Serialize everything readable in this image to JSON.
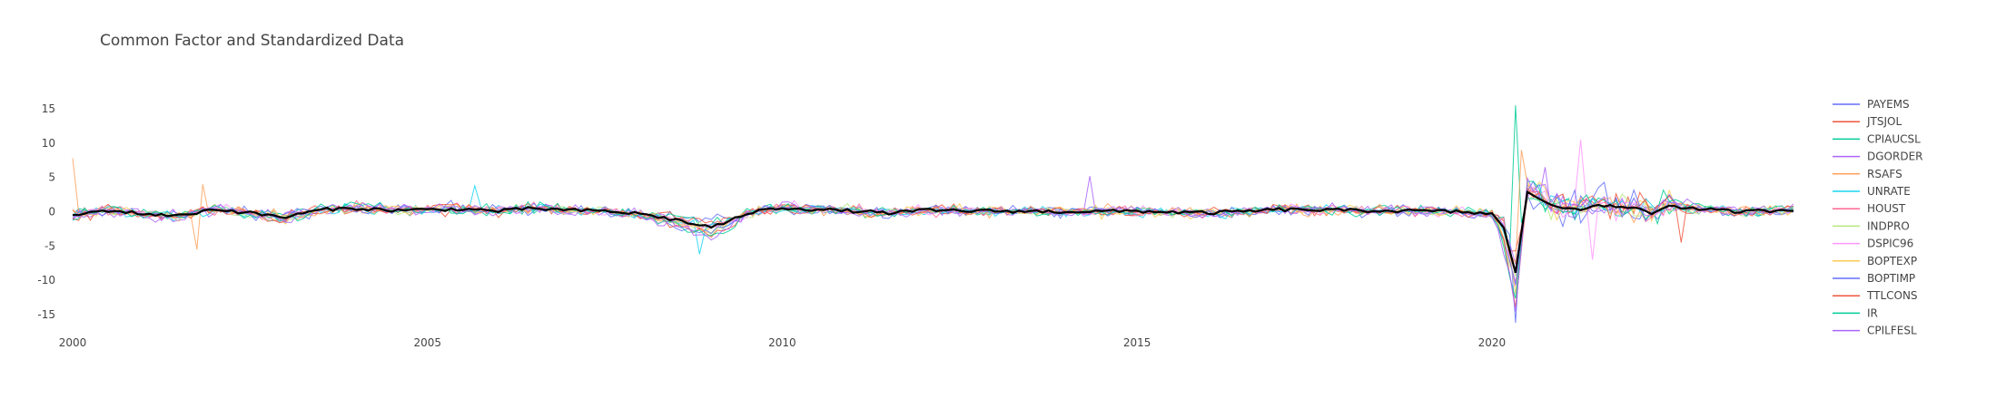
{
  "chart_data": {
    "type": "line",
    "title": "Common Factor and Standardized Data",
    "xlabel": "",
    "ylabel": "",
    "xlim": [
      2000,
      2024.25
    ],
    "ylim": [
      -17,
      17
    ],
    "x_ticks": [
      2000,
      2005,
      2010,
      2015,
      2020
    ],
    "y_ticks": [
      15,
      10,
      5,
      0,
      -5,
      -10,
      -15
    ],
    "grid": false,
    "legend_position": "right",
    "legend": [
      "PAYEMS",
      "JTSJOL",
      "CPIAUCSL",
      "DGORDER",
      "RSAFS",
      "UNRATE",
      "HOUST",
      "INDPRO",
      "DSPIC96",
      "BOPTEXP",
      "BOPTIMP",
      "TTLCONS",
      "IR",
      "CPILFESL"
    ],
    "series": [
      {
        "name": "PAYEMS",
        "color": "#636efa"
      },
      {
        "name": "JTSJOL",
        "color": "#ef553b"
      },
      {
        "name": "CPIAUCSL",
        "color": "#00cc96"
      },
      {
        "name": "DGORDER",
        "color": "#ab63fa"
      },
      {
        "name": "RSAFS",
        "color": "#ffa15a"
      },
      {
        "name": "UNRATE",
        "color": "#19d3f3"
      },
      {
        "name": "HOUST",
        "color": "#ff6692"
      },
      {
        "name": "INDPRO",
        "color": "#b6e880"
      },
      {
        "name": "DSPIC96",
        "color": "#ff97ff"
      },
      {
        "name": "BOPTEXP",
        "color": "#fecb52"
      },
      {
        "name": "BOPTIMP",
        "color": "#636efa"
      },
      {
        "name": "TTLCONS",
        "color": "#ef553b"
      },
      {
        "name": "IR",
        "color": "#00cc96"
      },
      {
        "name": "CPILFESL",
        "color": "#ab63fa"
      }
    ],
    "common_factor": {
      "color": "#000000",
      "x": [
        2000.0,
        2000.5,
        2001.0,
        2001.5,
        2002.0,
        2002.5,
        2003.0,
        2003.5,
        2004.0,
        2004.5,
        2005.0,
        2005.5,
        2006.0,
        2006.5,
        2007.0,
        2007.5,
        2008.0,
        2008.5,
        2008.75,
        2009.0,
        2009.25,
        2009.5,
        2010.0,
        2010.5,
        2011.0,
        2011.5,
        2012.0,
        2013.0,
        2014.0,
        2015.0,
        2016.0,
        2017.0,
        2018.0,
        2019.0,
        2019.5,
        2020.0,
        2020.17,
        2020.33,
        2020.42,
        2020.5,
        2020.67,
        2020.83,
        2021.0,
        2021.25,
        2021.5,
        2021.75,
        2022.0,
        2022.25,
        2022.5,
        2022.75,
        2023.0,
        2023.5,
        2024.0,
        2024.25
      ],
      "y": [
        -0.5,
        0.2,
        -0.3,
        -0.6,
        0.4,
        -0.2,
        -0.8,
        0.3,
        0.5,
        0.2,
        0.3,
        0.4,
        0.1,
        0.5,
        0.2,
        0.1,
        -0.3,
        -1.2,
        -1.8,
        -2.2,
        -1.5,
        -0.2,
        0.6,
        0.3,
        0.1,
        -0.2,
        0.2,
        0.1,
        0.0,
        0.1,
        -0.2,
        0.3,
        0.2,
        0.1,
        0.0,
        -0.3,
        -2.5,
        -9.0,
        -3.0,
        3.0,
        2.0,
        0.8,
        0.6,
        0.4,
        1.2,
        0.5,
        0.7,
        -0.3,
        1.0,
        0.5,
        0.3,
        0.0,
        0.2,
        0.3
      ]
    },
    "annotations": [
      {
        "series": "CPIAUCSL",
        "x": 2020.33,
        "y": 15.5
      },
      {
        "series": "PAYEMS",
        "x": 2020.33,
        "y": -16.2
      },
      {
        "series": "RSAFS",
        "x": 2000.0,
        "y": 7.8
      },
      {
        "series": "DSPIC96",
        "x": 2021.25,
        "y": 10.5
      },
      {
        "series": "DSPIC96",
        "x": 2021.42,
        "y": -7.0
      },
      {
        "series": "UNRATE",
        "x": 2008.83,
        "y": -6.2
      },
      {
        "series": "DGORDER",
        "x": 2014.33,
        "y": 5.2
      },
      {
        "series": "RSAFS",
        "x": 2001.75,
        "y": -5.5
      },
      {
        "series": "RSAFS",
        "x": 2001.83,
        "y": 4.0
      },
      {
        "series": "TTLCONS",
        "x": 2022.67,
        "y": -4.5
      },
      {
        "series": "UNRATE",
        "x": 2005.67,
        "y": 3.8
      },
      {
        "series": "DGORDER",
        "x": 2020.75,
        "y": 6.5
      },
      {
        "series": "RSAFS",
        "x": 2020.42,
        "y": 9.0
      }
    ]
  }
}
